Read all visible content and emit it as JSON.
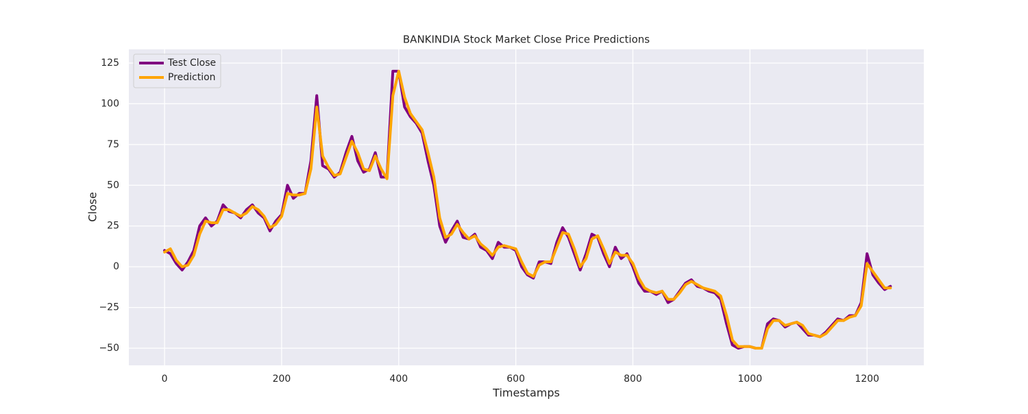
{
  "chart_data": {
    "type": "line",
    "title": "BANKINDIA Stock Market Close Price Predictions",
    "xlabel": "Timestamps",
    "ylabel": "Close",
    "x": [
      0,
      10,
      20,
      30,
      40,
      50,
      60,
      70,
      80,
      90,
      100,
      110,
      120,
      130,
      140,
      150,
      160,
      170,
      180,
      190,
      200,
      210,
      220,
      230,
      240,
      250,
      260,
      270,
      280,
      290,
      300,
      310,
      320,
      330,
      340,
      350,
      360,
      370,
      380,
      390,
      400,
      410,
      420,
      430,
      440,
      450,
      460,
      470,
      480,
      490,
      500,
      510,
      520,
      530,
      540,
      550,
      560,
      570,
      580,
      590,
      600,
      610,
      620,
      630,
      640,
      650,
      660,
      670,
      680,
      690,
      700,
      710,
      720,
      730,
      740,
      750,
      760,
      770,
      780,
      790,
      800,
      810,
      820,
      830,
      840,
      850,
      860,
      870,
      880,
      890,
      900,
      910,
      920,
      930,
      940,
      950,
      960,
      970,
      980,
      990,
      1000,
      1010,
      1020,
      1030,
      1040,
      1050,
      1060,
      1070,
      1080,
      1090,
      1100,
      1110,
      1120,
      1130,
      1140,
      1150,
      1160,
      1170,
      1180,
      1190,
      1200,
      1210,
      1220,
      1230,
      1240
    ],
    "series": [
      {
        "name": "Test Close",
        "color": "#800080",
        "values": [
          10,
          8,
          2,
          -2,
          3,
          10,
          25,
          30,
          25,
          28,
          38,
          34,
          33,
          30,
          35,
          38,
          33,
          30,
          22,
          28,
          32,
          50,
          42,
          45,
          45,
          65,
          105,
          62,
          60,
          55,
          58,
          70,
          80,
          65,
          58,
          60,
          70,
          55,
          55,
          120,
          120,
          98,
          92,
          88,
          82,
          65,
          50,
          25,
          15,
          22,
          28,
          18,
          17,
          20,
          12,
          10,
          5,
          15,
          12,
          12,
          10,
          0,
          -5,
          -7,
          3,
          3,
          2,
          15,
          24,
          18,
          8,
          -2,
          8,
          20,
          18,
          8,
          0,
          12,
          5,
          8,
          0,
          -10,
          -15,
          -15,
          -17,
          -15,
          -22,
          -20,
          -15,
          -10,
          -8,
          -12,
          -13,
          -15,
          -16,
          -20,
          -35,
          -48,
          -50,
          -49,
          -49,
          -50,
          -50,
          -35,
          -32,
          -33,
          -37,
          -35,
          -34,
          -38,
          -42,
          -42,
          -43,
          -40,
          -36,
          -32,
          -33,
          -30,
          -30,
          -22,
          8,
          -5,
          -10,
          -14,
          -12
        ]
      },
      {
        "name": "Prediction",
        "color": "#ffa500",
        "values": [
          9,
          11,
          4,
          0,
          1,
          7,
          20,
          28,
          27,
          27,
          35,
          35,
          33,
          31,
          33,
          37,
          35,
          31,
          24,
          26,
          31,
          45,
          44,
          44,
          45,
          60,
          98,
          68,
          61,
          56,
          57,
          67,
          77,
          70,
          60,
          59,
          68,
          60,
          54,
          105,
          120,
          104,
          94,
          89,
          84,
          70,
          55,
          30,
          18,
          20,
          26,
          21,
          17,
          19,
          14,
          11,
          7,
          12,
          13,
          12,
          11,
          3,
          -4,
          -6,
          1,
          3,
          3,
          12,
          21,
          20,
          11,
          0,
          5,
          17,
          19,
          11,
          2,
          9,
          7,
          7,
          2,
          -7,
          -13,
          -15,
          -16,
          -15,
          -20,
          -20,
          -16,
          -11,
          -9,
          -11,
          -13,
          -14,
          -15,
          -18,
          -30,
          -45,
          -49,
          -49,
          -49,
          -50,
          -50,
          -38,
          -33,
          -33,
          -36,
          -35,
          -34,
          -36,
          -41,
          -42,
          -43,
          -41,
          -37,
          -33,
          -33,
          -31,
          -30,
          -24,
          2,
          -3,
          -8,
          -13,
          -13
        ]
      }
    ],
    "xlim": [
      -61,
      1297
    ],
    "ylim": [
      -60.5,
      133.4
    ],
    "xticks": [
      0,
      200,
      400,
      600,
      800,
      1000,
      1200
    ],
    "yticks": [
      {
        "value": -50,
        "label": "−50"
      },
      {
        "value": -25,
        "label": "−25"
      },
      0,
      25,
      50,
      75,
      100,
      125
    ],
    "grid": true,
    "legend": "upper left"
  }
}
